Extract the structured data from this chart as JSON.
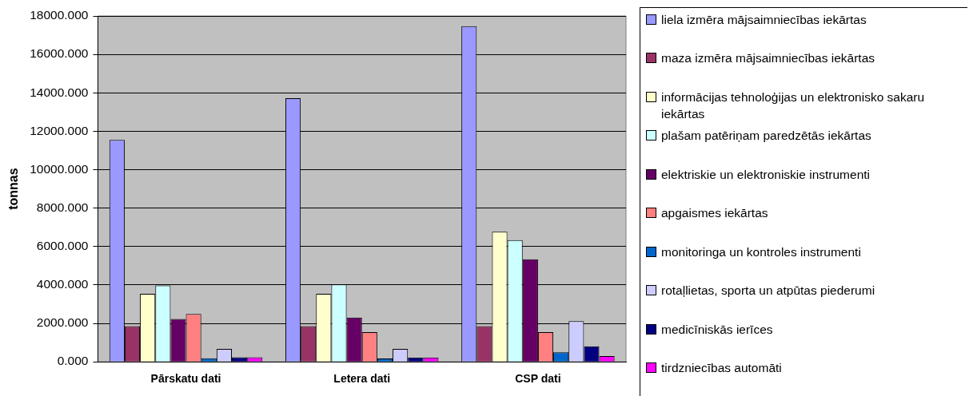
{
  "chart_data": {
    "type": "bar",
    "ylabel": "tonnas",
    "categories": [
      "Pārskatu dati",
      "Letera dati",
      "CSP dati"
    ],
    "series": [
      {
        "name": "liela izmēra mājsaimniecības iekārtas",
        "color": "#9999ff",
        "values": [
          11550,
          13720,
          17470
        ]
      },
      {
        "name": "maza izmēra mājsaimniecības iekārtas",
        "color": "#993366",
        "values": [
          1860,
          1860,
          1860
        ]
      },
      {
        "name": "informācijas tehnoloģijas un elektronisko sakaru iekārtas",
        "color": "#ffffcc",
        "values": [
          3540,
          3540,
          6770
        ]
      },
      {
        "name": "plašam patēriņam paredzētās iekārtas",
        "color": "#ccffff",
        "values": [
          3980,
          4030,
          6330
        ]
      },
      {
        "name": "elektriskie un elektroniskie instrumenti",
        "color": "#660066",
        "values": [
          2230,
          2300,
          5340
        ]
      },
      {
        "name": "apgaismes iekārtas",
        "color": "#ff8080",
        "values": [
          2490,
          1550,
          1550
        ]
      },
      {
        "name": "monitoringa un kontroles instrumenti",
        "color": "#0066cc",
        "values": [
          190,
          170,
          500
        ]
      },
      {
        "name": "rotaļlietas, sporta un atpūtas piederumi",
        "color": "#ccccff",
        "values": [
          670,
          670,
          2120
        ]
      },
      {
        "name": "medicīniskās ierīces",
        "color": "#000080",
        "values": [
          240,
          230,
          810
        ]
      },
      {
        "name": "tirdzniecības automāti",
        "color": "#ff00ff",
        "values": [
          240,
          230,
          300
        ]
      }
    ],
    "ylim": [
      0,
      18000
    ],
    "yticks": [
      {
        "value": 0,
        "label": "0.000"
      },
      {
        "value": 2000,
        "label": "2000.000"
      },
      {
        "value": 4000,
        "label": "4000.000"
      },
      {
        "value": 6000,
        "label": "6000.000"
      },
      {
        "value": 8000,
        "label": "8000.000"
      },
      {
        "value": 10000,
        "label": "10000.000"
      },
      {
        "value": 12000,
        "label": "12000.000"
      },
      {
        "value": 14000,
        "label": "14000.000"
      },
      {
        "value": 16000,
        "label": "16000.000"
      },
      {
        "value": 18000,
        "label": "18000.000"
      }
    ],
    "grid": "y",
    "legend": "right"
  }
}
